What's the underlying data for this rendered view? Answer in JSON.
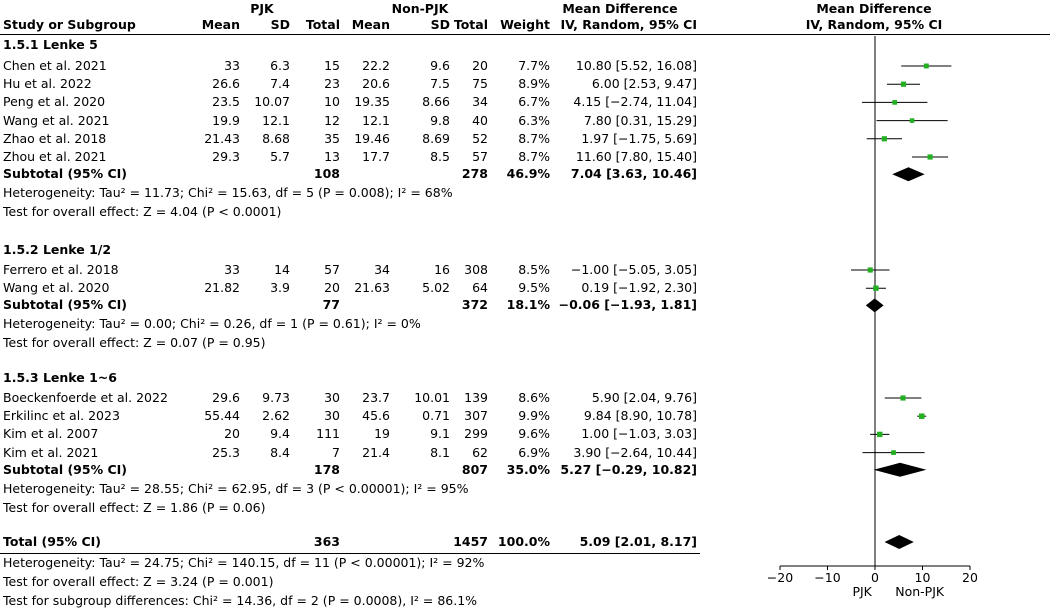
{
  "header": {
    "group1": "PJK",
    "group2": "Non-PJK",
    "md_title": "Mean Difference",
    "plot_title": "Mean Difference",
    "study_col": "Study or Subgroup",
    "mean1": "Mean",
    "sd1": "SD",
    "total1": "Total",
    "mean2": "Mean",
    "sd2": "SD",
    "total2": "Total",
    "weight": "Weight",
    "md_sub": "IV, Random, 95% CI",
    "plot_sub": "IV, Random, 95% CI"
  },
  "subgroups": [
    {
      "title": "1.5.1 Lenke 5",
      "studies": [
        {
          "study": "Chen et al. 2021",
          "m1": "33",
          "sd1": "6.3",
          "n1": "15",
          "m2": "22.2",
          "sd2": "9.6",
          "n2": "20",
          "w": "7.7%",
          "ci": "10.80 [5.52, 16.08]"
        },
        {
          "study": "Hu et al. 2022",
          "m1": "26.6",
          "sd1": "7.4",
          "n1": "23",
          "m2": "20.6",
          "sd2": "7.5",
          "n2": "75",
          "w": "8.9%",
          "ci": "6.00 [2.53, 9.47]"
        },
        {
          "study": "Peng et al. 2020",
          "m1": "23.5",
          "sd1": "10.07",
          "n1": "10",
          "m2": "19.35",
          "sd2": "8.66",
          "n2": "34",
          "w": "6.7%",
          "ci": "4.15 [−2.74, 11.04]"
        },
        {
          "study": "Wang et al. 2021",
          "m1": "19.9",
          "sd1": "12.1",
          "n1": "12",
          "m2": "12.1",
          "sd2": "9.8",
          "n2": "40",
          "w": "6.3%",
          "ci": "7.80 [0.31, 15.29]"
        },
        {
          "study": "Zhao et al. 2018",
          "m1": "21.43",
          "sd1": "8.68",
          "n1": "35",
          "m2": "19.46",
          "sd2": "8.69",
          "n2": "52",
          "w": "8.7%",
          "ci": "1.97 [−1.75, 5.69]"
        },
        {
          "study": "Zhou et al. 2021",
          "m1": "29.3",
          "sd1": "5.7",
          "n1": "13",
          "m2": "17.7",
          "sd2": "8.5",
          "n2": "57",
          "w": "8.7%",
          "ci": "11.60 [7.80, 15.40]"
        }
      ],
      "subtotal": {
        "label": "Subtotal (95% CI)",
        "n1": "108",
        "n2": "278",
        "w": "46.9%",
        "ci": "7.04 [3.63, 10.46]"
      },
      "heterogeneity": "Heterogeneity: Tau² = 11.73; Chi² = 15.63, df = 5 (P = 0.008); I² = 68%",
      "overall": "Test for overall effect: Z = 4.04 (P < 0.0001)"
    },
    {
      "title": "1.5.2 Lenke 1/2",
      "studies": [
        {
          "study": "Ferrero et al. 2018",
          "m1": "33",
          "sd1": "14",
          "n1": "57",
          "m2": "34",
          "sd2": "16",
          "n2": "308",
          "w": "8.5%",
          "ci": "−1.00 [−5.05, 3.05]"
        },
        {
          "study": "Wang et al. 2020",
          "m1": "21.82",
          "sd1": "3.9",
          "n1": "20",
          "m2": "21.63",
          "sd2": "5.02",
          "n2": "64",
          "w": "9.5%",
          "ci": "0.19 [−1.92, 2.30]"
        }
      ],
      "subtotal": {
        "label": "Subtotal (95% CI)",
        "n1": "77",
        "n2": "372",
        "w": "18.1%",
        "ci": "−0.06 [−1.93, 1.81]"
      },
      "heterogeneity": "Heterogeneity: Tau² = 0.00; Chi² = 0.26, df = 1 (P = 0.61); I² = 0%",
      "overall": "Test for overall effect: Z = 0.07 (P = 0.95)"
    },
    {
      "title": "1.5.3 Lenke 1~6",
      "studies": [
        {
          "study": "Boeckenfoerde et al. 2022",
          "m1": "29.6",
          "sd1": "9.73",
          "n1": "30",
          "m2": "23.7",
          "sd2": "10.01",
          "n2": "139",
          "w": "8.6%",
          "ci": "5.90 [2.04, 9.76]"
        },
        {
          "study": "Erkilinc et al. 2023",
          "m1": "55.44",
          "sd1": "2.62",
          "n1": "30",
          "m2": "45.6",
          "sd2": "0.71",
          "n2": "307",
          "w": "9.9%",
          "ci": "9.84 [8.90, 10.78]"
        },
        {
          "study": "Kim et al. 2007",
          "m1": "20",
          "sd1": "9.4",
          "n1": "111",
          "m2": "19",
          "sd2": "9.1",
          "n2": "299",
          "w": "9.6%",
          "ci": "1.00 [−1.03, 3.03]"
        },
        {
          "study": "Kim et al. 2021",
          "m1": "25.3",
          "sd1": "8.4",
          "n1": "7",
          "m2": "21.4",
          "sd2": "8.1",
          "n2": "62",
          "w": "6.9%",
          "ci": "3.90 [−2.64, 10.44]"
        }
      ],
      "subtotal": {
        "label": "Subtotal (95% CI)",
        "n1": "178",
        "n2": "807",
        "w": "35.0%",
        "ci": "5.27 [−0.29, 10.82]"
      },
      "heterogeneity": "Heterogeneity: Tau² = 28.55; Chi² = 62.95, df = 3 (P < 0.00001); I² = 95%",
      "overall": "Test for overall effect: Z = 1.86 (P = 0.06)"
    }
  ],
  "total": {
    "label": "Total (95% CI)",
    "n1": "363",
    "n2": "1457",
    "w": "100.0%",
    "ci": "5.09 [2.01, 8.17]"
  },
  "footer": {
    "heterogeneity": "Heterogeneity: Tau² = 24.75; Chi² = 140.15, df = 11 (P < 0.00001); I² = 92%",
    "overall": "Test for overall effect: Z = 3.24 (P = 0.001)",
    "subgroup_diff": "Test for subgroup differences: Chi² = 14.36, df = 2 (P = 0.0008), I² = 86.1%"
  },
  "axis": {
    "ticks": [
      "−20",
      "−10",
      "0",
      "10",
      "20"
    ],
    "left_label": "PJK",
    "right_label": "Non-PJK"
  },
  "colors": {
    "square": "#22b022",
    "line": "#000000",
    "diamond": "#000000"
  },
  "chart_data": {
    "type": "forest",
    "title": "",
    "xlabel": "",
    "xlim": [
      -20,
      20
    ],
    "x_ticks": [
      -20,
      -10,
      0,
      10,
      20
    ],
    "studies": [
      {
        "name": "Chen et al. 2021",
        "group": "1.5.1 Lenke 5",
        "md": 10.8,
        "lo": 5.52,
        "hi": 16.08,
        "weight": 7.7
      },
      {
        "name": "Hu et al. 2022",
        "group": "1.5.1 Lenke 5",
        "md": 6.0,
        "lo": 2.53,
        "hi": 9.47,
        "weight": 8.9
      },
      {
        "name": "Peng et al. 2020",
        "group": "1.5.1 Lenke 5",
        "md": 4.15,
        "lo": -2.74,
        "hi": 11.04,
        "weight": 6.7
      },
      {
        "name": "Wang et al. 2021",
        "group": "1.5.1 Lenke 5",
        "md": 7.8,
        "lo": 0.31,
        "hi": 15.29,
        "weight": 6.3
      },
      {
        "name": "Zhao et al. 2018",
        "group": "1.5.1 Lenke 5",
        "md": 1.97,
        "lo": -1.75,
        "hi": 5.69,
        "weight": 8.7
      },
      {
        "name": "Zhou et al. 2021",
        "group": "1.5.1 Lenke 5",
        "md": 11.6,
        "lo": 7.8,
        "hi": 15.4,
        "weight": 8.7
      },
      {
        "name": "Ferrero et al. 2018",
        "group": "1.5.2 Lenke 1/2",
        "md": -1.0,
        "lo": -5.05,
        "hi": 3.05,
        "weight": 8.5
      },
      {
        "name": "Wang et al. 2020",
        "group": "1.5.2 Lenke 1/2",
        "md": 0.19,
        "lo": -1.92,
        "hi": 2.3,
        "weight": 9.5
      },
      {
        "name": "Boeckenfoerde et al. 2022",
        "group": "1.5.3 Lenke 1~6",
        "md": 5.9,
        "lo": 2.04,
        "hi": 9.76,
        "weight": 8.6
      },
      {
        "name": "Erkilinc et al. 2023",
        "group": "1.5.3 Lenke 1~6",
        "md": 9.84,
        "lo": 8.9,
        "hi": 10.78,
        "weight": 9.9
      },
      {
        "name": "Kim et al. 2007",
        "group": "1.5.3 Lenke 1~6",
        "md": 1.0,
        "lo": -1.03,
        "hi": 3.03,
        "weight": 9.6
      },
      {
        "name": "Kim et al. 2021",
        "group": "1.5.3 Lenke 1~6",
        "md": 3.9,
        "lo": -2.64,
        "hi": 10.44,
        "weight": 6.9
      }
    ],
    "pooled": [
      {
        "name": "Subtotal 1.5.1 Lenke 5",
        "md": 7.04,
        "lo": 3.63,
        "hi": 10.46
      },
      {
        "name": "Subtotal 1.5.2 Lenke 1/2",
        "md": -0.06,
        "lo": -1.93,
        "hi": 1.81
      },
      {
        "name": "Subtotal 1.5.3 Lenke 1~6",
        "md": 5.27,
        "lo": -0.29,
        "hi": 10.82
      },
      {
        "name": "Total",
        "md": 5.09,
        "lo": 2.01,
        "hi": 8.17
      }
    ]
  }
}
